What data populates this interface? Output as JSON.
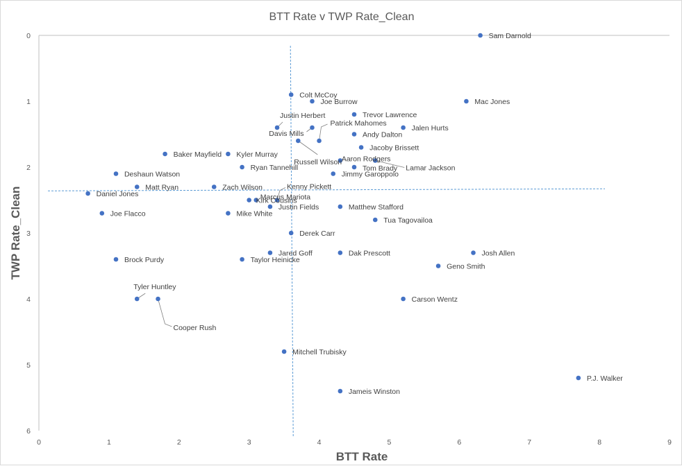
{
  "chart_data": {
    "type": "scatter",
    "title": "BTT Rate v TWP Rate_Clean",
    "xlabel": "BTT Rate",
    "ylabel": "TWP Rate_Clean",
    "xlim": [
      0,
      9
    ],
    "ylim": [
      0,
      6
    ],
    "y_reversed": true,
    "x_ticks": [
      "0",
      "1",
      "2",
      "3",
      "4",
      "5",
      "6",
      "7",
      "8",
      "9"
    ],
    "y_ticks": [
      "0",
      "1",
      "2",
      "3",
      "4",
      "5",
      "6"
    ],
    "grid": false,
    "legend": "none",
    "marker_color": "#4472c4",
    "reference_lines": {
      "x_mean": 3.6,
      "y_mean": 2.35
    },
    "points": [
      {
        "label": "Sam Darnold",
        "x": 6.3,
        "y": 0.0
      },
      {
        "label": "Colt McCoy",
        "x": 3.6,
        "y": 0.9
      },
      {
        "label": "Joe Burrow",
        "x": 3.9,
        "y": 1.0
      },
      {
        "label": "Mac Jones",
        "x": 6.1,
        "y": 1.0
      },
      {
        "label": "Trevor Lawrence",
        "x": 4.5,
        "y": 1.2
      },
      {
        "label": "Justin Herbert",
        "x": 3.4,
        "y": 1.4
      },
      {
        "label": "Patrick Mahomes",
        "x": 4.0,
        "y": 1.6
      },
      {
        "label": "Davis Mills",
        "x": 3.9,
        "y": 1.4
      },
      {
        "label": "Jalen Hurts",
        "x": 5.2,
        "y": 1.4
      },
      {
        "label": "Andy Dalton",
        "x": 4.5,
        "y": 1.5
      },
      {
        "label": "Russell Wilson",
        "x": 3.7,
        "y": 1.6
      },
      {
        "label": "Jacoby Brissett",
        "x": 4.6,
        "y": 1.7
      },
      {
        "label": "Baker Mayfield",
        "x": 1.8,
        "y": 1.8
      },
      {
        "label": "Kyler Murray",
        "x": 2.7,
        "y": 1.8
      },
      {
        "label": "Aaron Rodgers",
        "x": 4.3,
        "y": 1.9
      },
      {
        "label": "Lamar Jackson",
        "x": 4.8,
        "y": 1.9
      },
      {
        "label": "Ryan Tannehill",
        "x": 2.9,
        "y": 2.0
      },
      {
        "label": "Tom Brady",
        "x": 4.5,
        "y": 2.0
      },
      {
        "label": "Jimmy Garoppolo",
        "x": 4.2,
        "y": 2.1
      },
      {
        "label": "Deshaun Watson",
        "x": 1.1,
        "y": 2.1
      },
      {
        "label": "Matt Ryan",
        "x": 1.4,
        "y": 2.3
      },
      {
        "label": "Zach Wilson",
        "x": 2.5,
        "y": 2.3
      },
      {
        "label": "Daniel Jones",
        "x": 0.7,
        "y": 2.4
      },
      {
        "label": "Kenny Pickett",
        "x": 3.4,
        "y": 2.5
      },
      {
        "label": "Marcus Mariota",
        "x": 3.1,
        "y": 2.5
      },
      {
        "label": "Kirk Cousins",
        "x": 3.0,
        "y": 2.5
      },
      {
        "label": "Justin Fields",
        "x": 3.3,
        "y": 2.6
      },
      {
        "label": "Matthew Stafford",
        "x": 4.3,
        "y": 2.6
      },
      {
        "label": "Joe Flacco",
        "x": 0.9,
        "y": 2.7
      },
      {
        "label": "Mike White",
        "x": 2.7,
        "y": 2.7
      },
      {
        "label": "Tua Tagovailoa",
        "x": 4.8,
        "y": 2.8
      },
      {
        "label": "Derek Carr",
        "x": 3.6,
        "y": 3.0
      },
      {
        "label": "Jared Goff",
        "x": 3.3,
        "y": 3.3
      },
      {
        "label": "Dak Prescott",
        "x": 4.3,
        "y": 3.3
      },
      {
        "label": "Josh Allen",
        "x": 6.2,
        "y": 3.3
      },
      {
        "label": "Taylor Heinicke",
        "x": 2.9,
        "y": 3.4
      },
      {
        "label": "Brock Purdy",
        "x": 1.1,
        "y": 3.4
      },
      {
        "label": "Geno Smith",
        "x": 5.7,
        "y": 3.5
      },
      {
        "label": "Tyler Huntley",
        "x": 1.4,
        "y": 4.0
      },
      {
        "label": "Cooper Rush",
        "x": 1.7,
        "y": 4.0
      },
      {
        "label": "Carson Wentz",
        "x": 5.2,
        "y": 4.0
      },
      {
        "label": "Mitchell Trubisky",
        "x": 3.5,
        "y": 4.8
      },
      {
        "label": "P.J. Walker",
        "x": 7.7,
        "y": 5.2
      },
      {
        "label": "Jameis Winston",
        "x": 4.3,
        "y": 5.4
      }
    ]
  }
}
